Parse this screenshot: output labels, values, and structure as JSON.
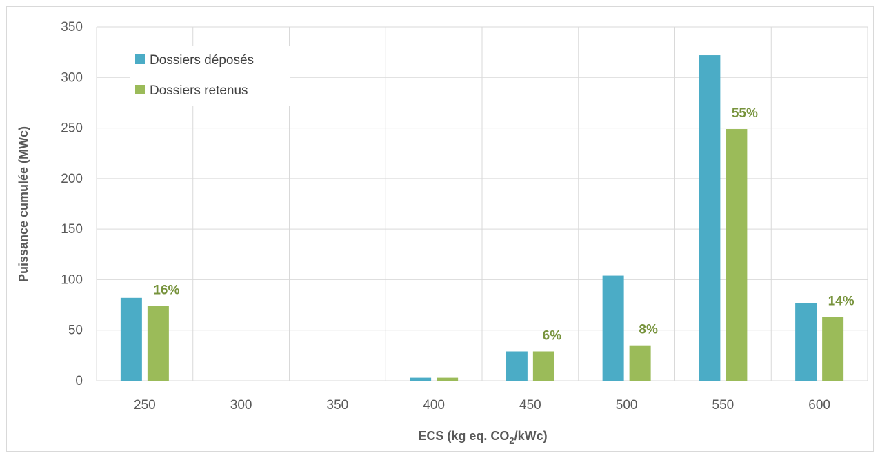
{
  "chart_data": {
    "type": "bar",
    "title": "",
    "xlabel": "ECS (kg eq. CO",
    "xlabel_sub": "2",
    "xlabel_suffix": "/kWc)",
    "ylabel": "Puissance cumulée (MWc)",
    "ylim": [
      0,
      350
    ],
    "yticks": [
      0,
      50,
      100,
      150,
      200,
      250,
      300,
      350
    ],
    "categories": [
      "250",
      "300",
      "350",
      "400",
      "450",
      "500",
      "550",
      "600"
    ],
    "grid": true,
    "legend_position": "top-left",
    "series": [
      {
        "name": "Dossiers déposés",
        "color": "#4bacc6",
        "values": [
          82,
          0,
          0,
          3,
          29,
          104,
          322,
          77
        ]
      },
      {
        "name": "Dossiers retenus",
        "color": "#9bbb59",
        "values": [
          74,
          0,
          0,
          3,
          29,
          35,
          249,
          63
        ]
      }
    ],
    "data_labels": [
      "16%",
      "",
      "",
      "",
      "6%",
      "8%",
      "55%",
      "14%"
    ],
    "data_label_color": "#77933c"
  }
}
